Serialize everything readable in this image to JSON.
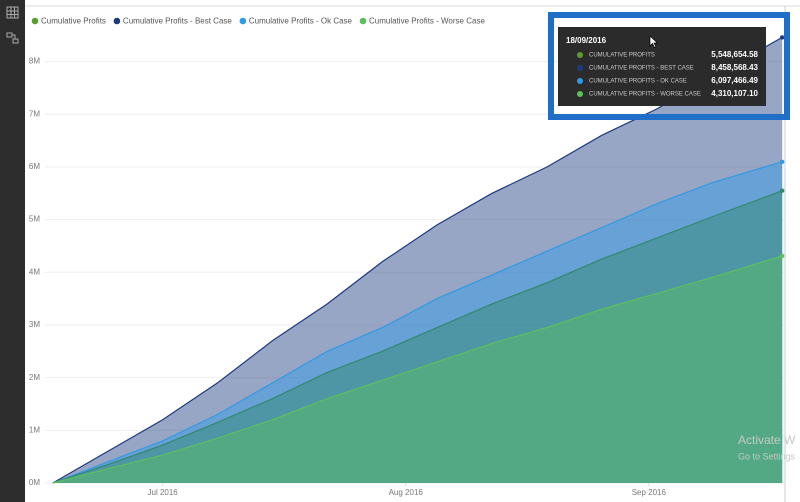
{
  "chart_data": {
    "type": "area",
    "x": [
      "2016-06-17",
      "2016-06-24",
      "2016-07-01",
      "2016-07-08",
      "2016-07-15",
      "2016-07-22",
      "2016-07-29",
      "2016-08-05",
      "2016-08-12",
      "2016-08-19",
      "2016-08-26",
      "2016-09-02",
      "2016-09-09",
      "2016-09-18"
    ],
    "series": [
      {
        "name": "Cumulative Profits - Best Case",
        "color": "#1b3a80",
        "values": [
          0,
          600000,
          1200000,
          1900000,
          2700000,
          3400000,
          4200000,
          4900000,
          5500000,
          6000000,
          6600000,
          7100000,
          7700000,
          8458568.43
        ]
      },
      {
        "name": "Cumulative Profits - Ok Case",
        "color": "#2e9be6",
        "values": [
          0,
          400000,
          800000,
          1300000,
          1900000,
          2500000,
          2950000,
          3500000,
          3950000,
          4400000,
          4850000,
          5300000,
          5700000,
          6097466.49
        ]
      },
      {
        "name": "Cumulative Profits",
        "color": "#2f8a6a",
        "values": [
          0,
          350000,
          720000,
          1150000,
          1600000,
          2100000,
          2500000,
          2950000,
          3400000,
          3800000,
          4250000,
          4650000,
          5050000,
          5548654.58
        ]
      },
      {
        "name": "Cumulative Profits - Worse Case",
        "color": "#5cc05a",
        "values": [
          0,
          270000,
          530000,
          850000,
          1200000,
          1600000,
          1950000,
          2300000,
          2650000,
          2950000,
          3300000,
          3600000,
          3900000,
          4310107.1
        ]
      }
    ],
    "legend_order": [
      2,
      0,
      1,
      3
    ],
    "xlim": [
      "2016-06-16",
      "2016-09-19"
    ],
    "xticks": [
      {
        "value": "2016-07-01",
        "label": "Jul 2016"
      },
      {
        "value": "2016-08-01",
        "label": "Aug 2016"
      },
      {
        "value": "2016-09-01",
        "label": "Sep 2016"
      }
    ],
    "ylim": [
      0,
      8600000
    ],
    "yticks": [
      {
        "value": 0,
        "label": "0M"
      },
      {
        "value": 1000000,
        "label": "1M"
      },
      {
        "value": 2000000,
        "label": "2M"
      },
      {
        "value": 3000000,
        "label": "3M"
      },
      {
        "value": 4000000,
        "label": "4M"
      },
      {
        "value": 5000000,
        "label": "5M"
      },
      {
        "value": 6000000,
        "label": "6M"
      },
      {
        "value": 7000000,
        "label": "7M"
      },
      {
        "value": 8000000,
        "label": "8M"
      }
    ],
    "grid": true,
    "tooltip": {
      "title": "18/09/2016",
      "rows": [
        {
          "name": "CUMULATIVE PROFITS",
          "value": "5,548,654.58",
          "color": "#5a9e2f"
        },
        {
          "name": "CUMULATIVE PROFITS - BEST CASE",
          "value": "8,458,568.43",
          "color": "#1b3a80"
        },
        {
          "name": "CUMULATIVE PROFITS - OK CASE",
          "value": "6,097,466.49",
          "color": "#2e9be6"
        },
        {
          "name": "CUMULATIVE PROFITS - WORSE CASE",
          "value": "4,310,107.10",
          "color": "#5cc05a"
        }
      ]
    },
    "watermark": [
      "Activate W",
      "Go to Settings"
    ]
  }
}
